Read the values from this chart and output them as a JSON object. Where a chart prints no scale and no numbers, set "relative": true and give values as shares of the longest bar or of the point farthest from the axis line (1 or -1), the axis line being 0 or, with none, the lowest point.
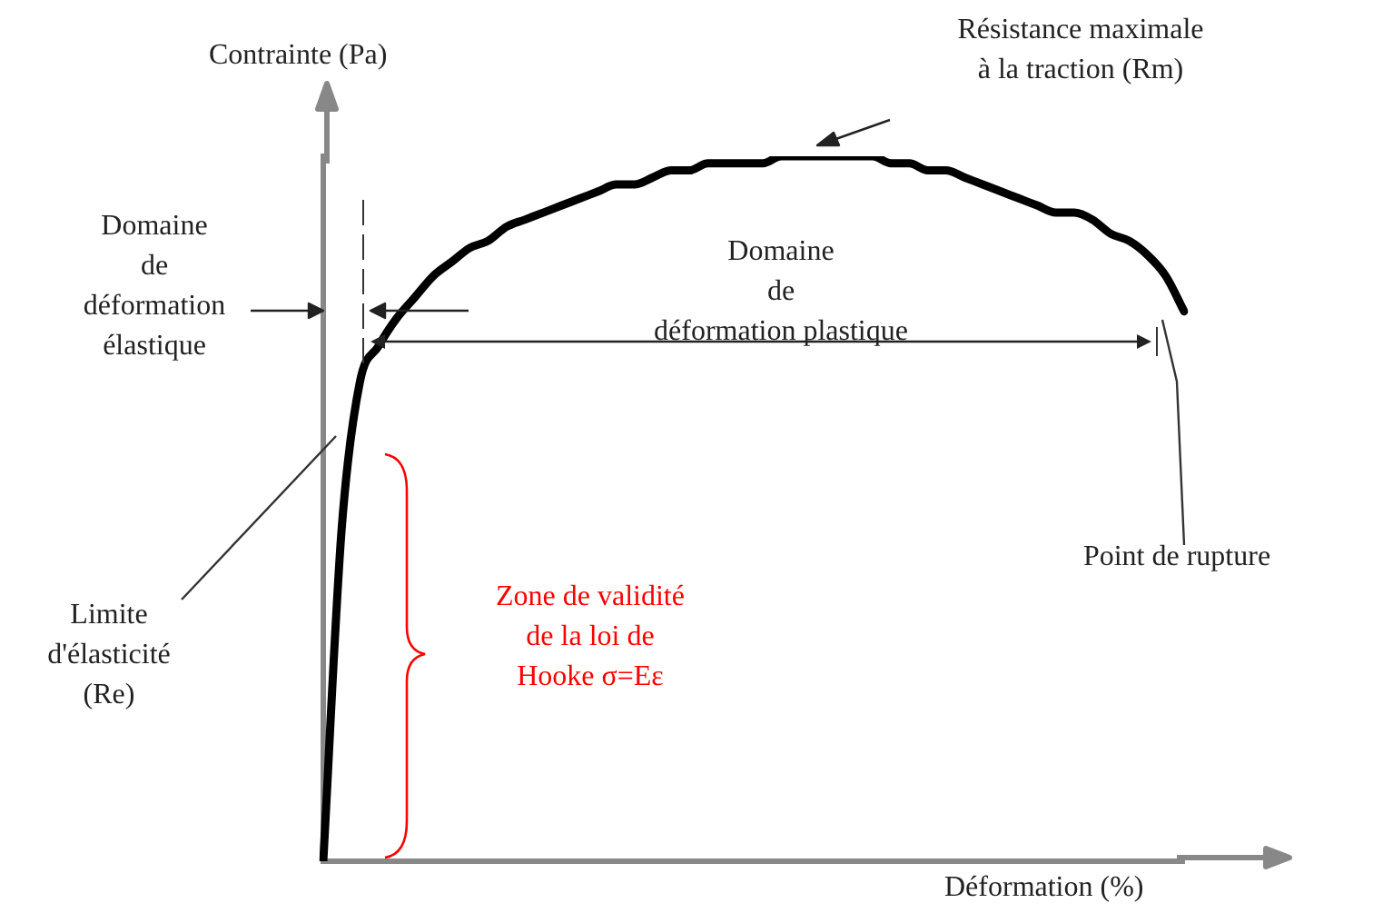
{
  "chart_data": {
    "type": "line",
    "relative": true,
    "xlabel": "Déformation (%)",
    "ylabel": "Contrainte (Pa)",
    "categories": [
      null,
      null,
      null,
      null,
      null,
      null,
      null,
      null,
      null,
      null,
      null,
      null,
      null,
      null,
      null,
      null,
      null,
      null,
      null,
      null,
      null,
      null,
      null,
      null,
      null,
      null,
      null,
      null,
      null,
      null,
      null,
      null,
      null,
      null,
      null,
      null,
      null,
      null,
      null,
      null,
      null,
      null,
      null,
      null,
      null,
      null,
      null,
      null
    ],
    "series": [
      {
        "color": "#000000",
        "values": [
          0,
          0.47,
          0.68,
          0.73,
          0.77,
          0.8,
          0.83,
          0.85,
          0.87,
          0.88,
          0.9,
          0.91,
          0.92,
          0.93,
          0.94,
          0.95,
          0.96,
          0.96,
          0.97,
          0.98,
          0.98,
          0.99,
          0.99,
          0.99,
          0.99,
          1,
          1,
          1,
          1,
          1,
          1,
          0.99,
          0.99,
          0.98,
          0.98,
          0.97,
          0.96,
          0.95,
          0.94,
          0.93,
          0.92,
          0.92,
          0.91,
          0.89,
          0.88,
          0.86,
          0.83,
          0.78
        ]
      }
    ],
    "annotations": [
      "Résistance maximale\nà la traction (Rm)",
      "Domaine\nde\ndéformation\nélastique",
      "Domaine\nde\ndéformation plastique",
      "Point de rupture",
      "Limite\nd'élasticité\n(Re)",
      "Zone de validité\nde la loi de\nHooke σ=Eε"
    ],
    "grid": false,
    "legend": false,
    "marker": "none",
    "line_style": "solid"
  }
}
